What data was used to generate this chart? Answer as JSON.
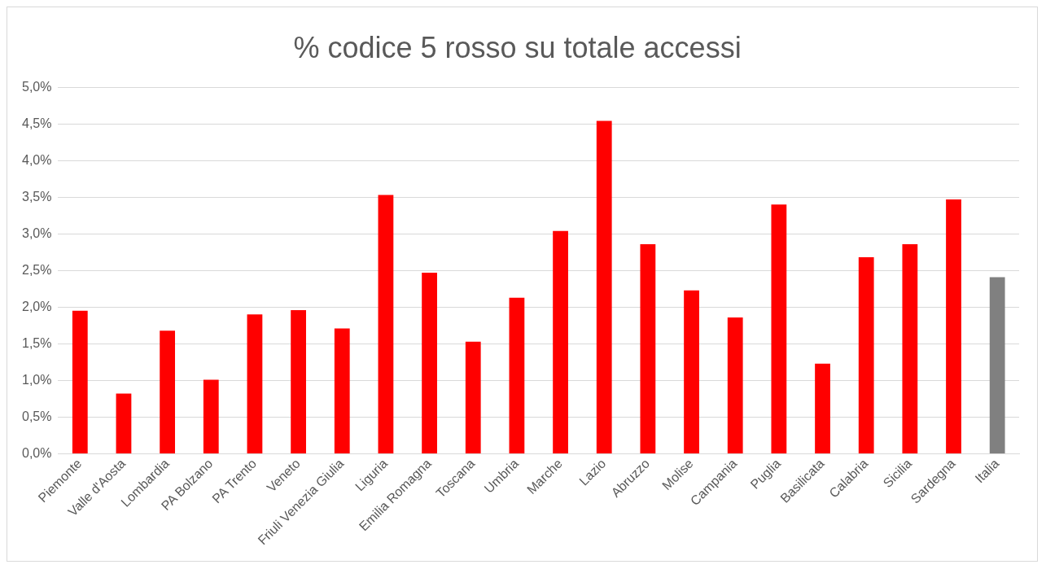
{
  "chart_data": {
    "type": "bar",
    "title": "% codice 5 rosso su totale accessi",
    "categories": [
      "Piemonte",
      "Valle d'Aosta",
      "Lombardia",
      "PA Bolzano",
      "PA Trento",
      "Veneto",
      "Friuli Venezia Giulia",
      "Liguria",
      "Emilia Romagna",
      "Toscana",
      "Umbria",
      "Marche",
      "Lazio",
      "Abruzzo",
      "Molise",
      "Campania",
      "Puglia",
      "Basilicata",
      "Calabria",
      "Sicilia",
      "Sardegna",
      "Italia"
    ],
    "values": [
      1.95,
      0.82,
      1.68,
      1.01,
      1.9,
      1.96,
      1.71,
      3.53,
      2.47,
      1.53,
      2.13,
      3.04,
      4.54,
      2.86,
      2.23,
      1.86,
      3.4,
      1.23,
      2.68,
      2.86,
      3.47,
      2.41
    ],
    "colors": [
      "#ff0000",
      "#ff0000",
      "#ff0000",
      "#ff0000",
      "#ff0000",
      "#ff0000",
      "#ff0000",
      "#ff0000",
      "#ff0000",
      "#ff0000",
      "#ff0000",
      "#ff0000",
      "#ff0000",
      "#ff0000",
      "#ff0000",
      "#ff0000",
      "#ff0000",
      "#ff0000",
      "#ff0000",
      "#ff0000",
      "#ff0000",
      "#808080"
    ],
    "ylim": [
      0,
      5
    ],
    "yticks": [
      {
        "value": 0,
        "label": "0,0%"
      },
      {
        "value": 0.5,
        "label": "0,5%"
      },
      {
        "value": 1,
        "label": "1,0%"
      },
      {
        "value": 1.5,
        "label": "1,5%"
      },
      {
        "value": 2,
        "label": "2,0%"
      },
      {
        "value": 2.5,
        "label": "2,5%"
      },
      {
        "value": 3,
        "label": "3,0%"
      },
      {
        "value": 3.5,
        "label": "3,5%"
      },
      {
        "value": 4,
        "label": "4,0%"
      },
      {
        "value": 4.5,
        "label": "4,5%"
      },
      {
        "value": 5,
        "label": "5,0%"
      }
    ],
    "grid": "y"
  }
}
